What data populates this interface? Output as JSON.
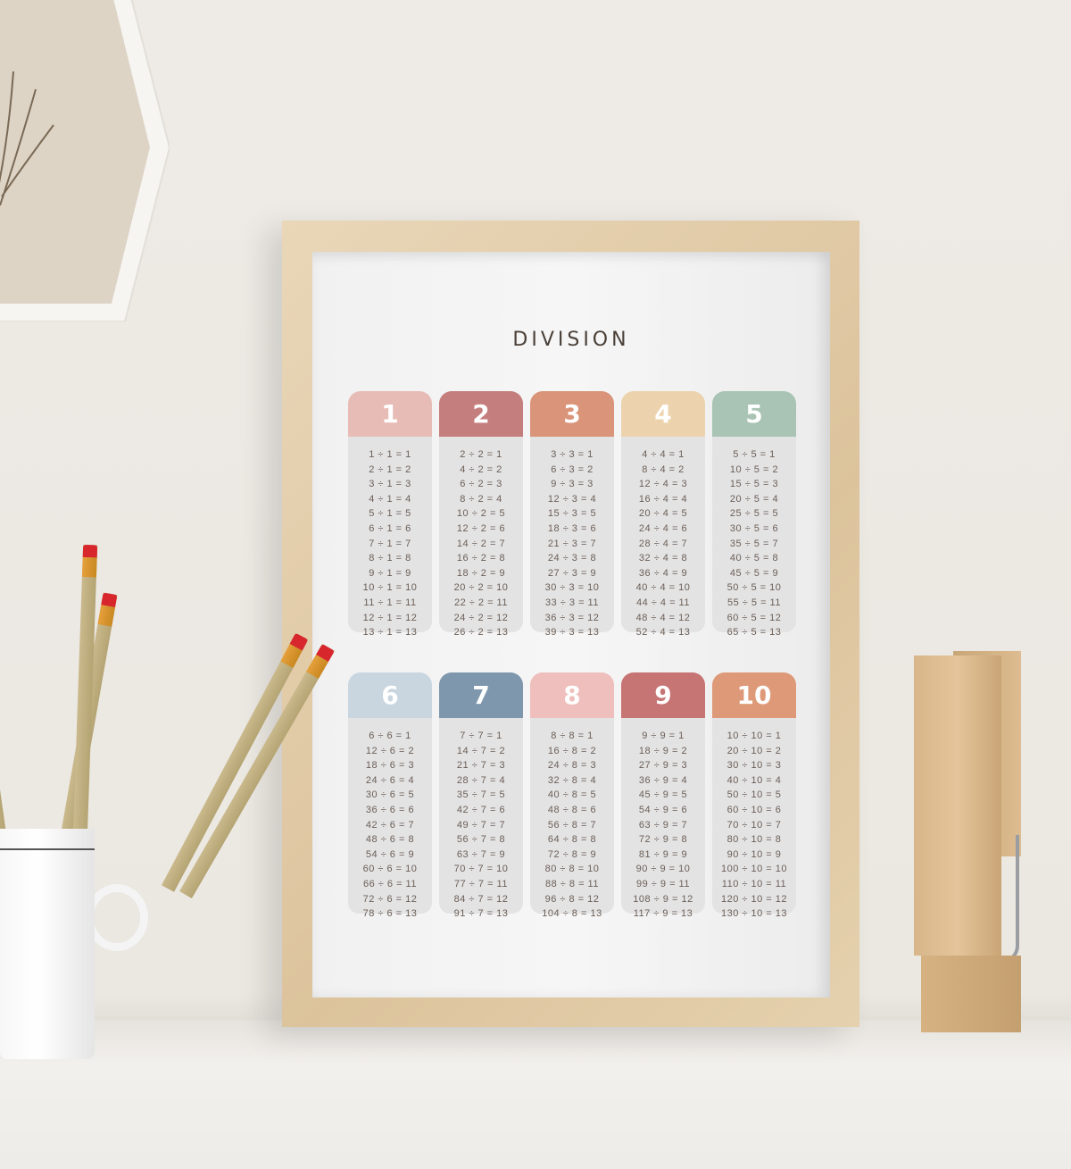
{
  "poster": {
    "title": "DIVISION",
    "tables": [
      {
        "number": "1",
        "color": "#e8bcb6",
        "equations": [
          "1 ÷ 1 = 1",
          "2 ÷ 1 = 2",
          "3 ÷ 1 = 3",
          "4 ÷ 1 = 4",
          "5 ÷ 1 = 5",
          "6 ÷ 1 = 6",
          "7 ÷ 1 = 7",
          "8 ÷ 1 = 8",
          "9 ÷ 1 = 9",
          "10 ÷ 1 = 10",
          "11 ÷ 1 = 11",
          "12 ÷ 1 = 12",
          "13 ÷ 1 = 13"
        ]
      },
      {
        "number": "2",
        "color": "#c47e7d",
        "equations": [
          "2 ÷ 2 = 1",
          "4 ÷ 2 = 2",
          "6 ÷ 2 = 3",
          "8 ÷ 2 = 4",
          "10 ÷ 2 = 5",
          "12 ÷ 2 = 6",
          "14 ÷ 2 = 7",
          "16 ÷ 2 = 8",
          "18 ÷ 2 = 9",
          "20 ÷ 2 = 10",
          "22 ÷ 2 = 11",
          "24 ÷ 2 = 12",
          "26 ÷ 2 = 13"
        ]
      },
      {
        "number": "3",
        "color": "#d99479",
        "equations": [
          "3 ÷ 3 = 1",
          "6 ÷ 3 = 2",
          "9 ÷ 3 = 3",
          "12 ÷ 3 = 4",
          "15 ÷ 3 = 5",
          "18 ÷ 3 = 6",
          "21 ÷ 3 = 7",
          "24 ÷ 3 = 8",
          "27 ÷ 3 = 9",
          "30 ÷ 3 = 10",
          "33 ÷ 3 = 11",
          "36 ÷ 3 = 12",
          "39 ÷ 3 = 13"
        ]
      },
      {
        "number": "4",
        "color": "#ecd3ad",
        "equations": [
          "4 ÷ 4 = 1",
          "8 ÷ 4 = 2",
          "12 ÷ 4 = 3",
          "16 ÷ 4 = 4",
          "20 ÷ 4 = 5",
          "24 ÷ 4 = 6",
          "28 ÷ 4 = 7",
          "32 ÷ 4 = 8",
          "36 ÷ 4 = 9",
          "40 ÷ 4 = 10",
          "44 ÷ 4 = 11",
          "48 ÷ 4 = 12",
          "52 ÷ 4 = 13"
        ]
      },
      {
        "number": "5",
        "color": "#a9c4b4",
        "equations": [
          "5 ÷ 5 = 1",
          "10 ÷ 5 = 2",
          "15 ÷ 5 = 3",
          "20 ÷ 5 = 4",
          "25 ÷ 5 = 5",
          "30 ÷ 5 = 6",
          "35 ÷ 5 = 7",
          "40 ÷ 5 = 8",
          "45 ÷ 5 = 9",
          "50 ÷ 5 = 10",
          "55 ÷ 5 = 11",
          "60 ÷ 5 = 12",
          "65 ÷ 5 = 13"
        ]
      },
      {
        "number": "6",
        "color": "#c9d6e0",
        "equations": [
          "6 ÷ 6 = 1",
          "12 ÷ 6 = 2",
          "18 ÷ 6 = 3",
          "24 ÷ 6 = 4",
          "30 ÷ 6 = 5",
          "36 ÷ 6 = 6",
          "42 ÷ 6 = 7",
          "48 ÷ 6 = 8",
          "54 ÷ 6 = 9",
          "60 ÷ 6 = 10",
          "66 ÷ 6 = 11",
          "72 ÷ 6 = 12",
          "78 ÷ 6 = 13"
        ]
      },
      {
        "number": "7",
        "color": "#7e97ad",
        "equations": [
          "7 ÷ 7 = 1",
          "14 ÷ 7 = 2",
          "21 ÷ 7 = 3",
          "28 ÷ 7 = 4",
          "35 ÷ 7 = 5",
          "42 ÷ 7 = 6",
          "49 ÷ 7 = 7",
          "56 ÷ 7 = 8",
          "63 ÷ 7 = 9",
          "70 ÷ 7 = 10",
          "77 ÷ 7 = 11",
          "84 ÷ 7 = 12",
          "91 ÷ 7 = 13"
        ]
      },
      {
        "number": "8",
        "color": "#eebfbc",
        "equations": [
          "8 ÷ 8 = 1",
          "16 ÷ 8 = 2",
          "24 ÷ 8 = 3",
          "32 ÷ 8 = 4",
          "40 ÷ 8 = 5",
          "48 ÷ 8 = 6",
          "56 ÷ 8 = 7",
          "64 ÷ 8 = 8",
          "72 ÷ 8 = 9",
          "80 ÷ 8 = 10",
          "88 ÷ 8 = 11",
          "96 ÷ 8 = 12",
          "104 ÷ 8 = 13"
        ]
      },
      {
        "number": "9",
        "color": "#c77474",
        "equations": [
          "9 ÷ 9 = 1",
          "18 ÷ 9 = 2",
          "27 ÷ 9 = 3",
          "36 ÷ 9 = 4",
          "45 ÷ 9 = 5",
          "54 ÷ 9 = 6",
          "63 ÷ 9 = 7",
          "72 ÷ 9 = 8",
          "81 ÷ 9 = 9",
          "90 ÷ 9 = 10",
          "99 ÷ 9 = 11",
          "108 ÷ 9 = 12",
          "117 ÷ 9 = 13"
        ]
      },
      {
        "number": "10",
        "color": "#de9a78",
        "equations": [
          "10 ÷ 10 = 1",
          "20 ÷ 10 = 2",
          "30 ÷ 10 = 3",
          "40 ÷ 10 = 4",
          "50 ÷ 10 = 5",
          "60 ÷ 10 = 6",
          "70 ÷ 10 = 7",
          "80 ÷ 10 = 8",
          "90 ÷ 10 = 9",
          "100 ÷ 10 = 10",
          "110 ÷ 10 = 11",
          "120 ÷ 10 = 12",
          "130 ÷ 10 = 13"
        ]
      }
    ]
  }
}
